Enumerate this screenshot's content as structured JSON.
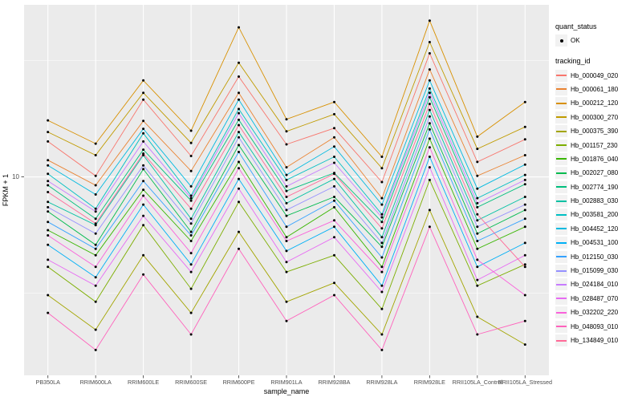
{
  "axes": {
    "y_title": "FPKM + 1",
    "x_title": "sample_name",
    "y_tick_label": "10"
  },
  "legend": {
    "quant_status_title": "quant_status",
    "quant_status_items": [
      {
        "label": "OK",
        "shape": "point"
      }
    ],
    "tracking_title": "tracking_id"
  },
  "panel": {
    "bg": "#EBEBEB",
    "grid": "#FFFFFF"
  },
  "chart_data": {
    "type": "line",
    "title": "",
    "xlabel": "sample_name",
    "ylabel": "FPKM + 1",
    "y_scale": "log10",
    "ylim": [
      1.4,
      55
    ],
    "y_major_ticks": [
      10
    ],
    "y_minor_ticks": [
      3.162,
      31.62
    ],
    "grid": true,
    "legend_position": "right",
    "point_color": "#000000",
    "categories": [
      "PB350LA",
      "RRIM600LA",
      "RRIM600LE",
      "RRIM600SE",
      "RRIM600PE",
      "RRIM901LA",
      "RRIM928BA",
      "RRIM928LA",
      "RRIM928LE",
      "RRII105LA_Control",
      "RRII105LA_Stressed"
    ],
    "series": [
      {
        "name": "Hb_000049_020",
        "color": "#F8766D",
        "values": [
          14.2,
          10.1,
          21.5,
          12.3,
          27,
          13.8,
          16.2,
          9.5,
          34,
          11.6,
          14.5
        ]
      },
      {
        "name": "Hb_000061_180",
        "color": "#EA8331",
        "values": [
          11.8,
          9.2,
          17.4,
          10.6,
          23,
          11,
          14.8,
          8.1,
          29,
          10.1,
          12.4
        ]
      },
      {
        "name": "Hb_000212_120",
        "color": "#D89000",
        "values": [
          17.5,
          13.9,
          26,
          15.8,
          44,
          17.7,
          21,
          12.2,
          47,
          14.9,
          21
        ]
      },
      {
        "name": "Hb_000300_270",
        "color": "#C09B00",
        "values": [
          15.6,
          12.4,
          23,
          14,
          31,
          15.7,
          18.6,
          10.9,
          38,
          13.2,
          16.4
        ]
      },
      {
        "name": "Hb_000375_390",
        "color": "#A3A500",
        "values": [
          3.1,
          2.2,
          4.6,
          2.6,
          5.8,
          2.9,
          3.5,
          2.1,
          7.2,
          2.5,
          1.9
        ]
      },
      {
        "name": "Hb_001157_230",
        "color": "#7CAE00",
        "values": [
          4.1,
          2.9,
          6.2,
          3.3,
          7.8,
          3.9,
          4.6,
          2.7,
          9.7,
          3.4,
          4.2
        ]
      },
      {
        "name": "Hb_001876_040",
        "color": "#39B600",
        "values": [
          5.9,
          4.6,
          8.8,
          5.3,
          11.6,
          5.5,
          7.4,
          4.1,
          14.6,
          4.9,
          6.1
        ]
      },
      {
        "name": "Hb_002027_080",
        "color": "#00BB4E",
        "values": [
          7.1,
          5.1,
          10.8,
          5.8,
          13.7,
          6.8,
          8.2,
          5,
          17,
          5.7,
          7.2
        ]
      },
      {
        "name": "Hb_002774_190",
        "color": "#00BF7D",
        "values": [
          9.2,
          6.6,
          13.1,
          7.9,
          17.6,
          8.7,
          10.4,
          6.4,
          22,
          7.4,
          9.3
        ]
      },
      {
        "name": "Hb_002883_030",
        "color": "#00C1A3",
        "values": [
          7.8,
          6.2,
          12.4,
          6.6,
          15.6,
          7.7,
          9.8,
          5.5,
          19.4,
          6.5,
          8.2
        ]
      },
      {
        "name": "Hb_003581_200",
        "color": "#00BFC4",
        "values": [
          10.3,
          7.3,
          15.4,
          8.3,
          19.6,
          9.7,
          12.2,
          6.9,
          24,
          8.1,
          10.2
        ]
      },
      {
        "name": "Hb_004452_120",
        "color": "#00BAE0",
        "values": [
          11.2,
          8.4,
          16.1,
          9.1,
          21.5,
          10.2,
          13.5,
          7.6,
          26,
          8.9,
          11.3
        ]
      },
      {
        "name": "Hb_004531_100",
        "color": "#00B0F6",
        "values": [
          5.1,
          3.7,
          7.6,
          4.2,
          9.8,
          4.8,
          6.1,
          3.4,
          12.2,
          4.1,
          5.2
        ]
      },
      {
        "name": "Hb_012150_030",
        "color": "#35A2FF",
        "values": [
          6.4,
          4.9,
          9.6,
          5.6,
          12.8,
          6.1,
          7.9,
          4.5,
          16,
          5.3,
          6.6
        ]
      },
      {
        "name": "Hb_015099_030",
        "color": "#9590FF",
        "values": [
          7.4,
          5.7,
          11.2,
          6.3,
          14.8,
          7.2,
          9.1,
          5.2,
          18.2,
          6.1,
          7.6
        ]
      },
      {
        "name": "Hb_024184_010",
        "color": "#C77CFF",
        "values": [
          9.6,
          7.1,
          14.2,
          8.1,
          18.8,
          9.1,
          11.5,
          6.7,
          23,
          7.7,
          9.7
        ]
      },
      {
        "name": "Hb_028487_070",
        "color": "#E76BF3",
        "values": [
          4.4,
          3.4,
          6.8,
          3.9,
          8.9,
          4.3,
          5.5,
          3.2,
          11,
          3.6,
          4.6
        ]
      },
      {
        "name": "Hb_032202_220",
        "color": "#FA62DB",
        "values": [
          5.6,
          4.1,
          8.3,
          4.7,
          10.9,
          5.3,
          6.5,
          3.9,
          13.4,
          4.4,
          3.1
        ]
      },
      {
        "name": "Hb_048093_010",
        "color": "#FF62BC",
        "values": [
          2.6,
          1.8,
          3.8,
          2.1,
          4.9,
          2.4,
          3.1,
          1.8,
          6.1,
          2.1,
          2.4
        ]
      },
      {
        "name": "Hb_134849_010",
        "color": "#FF6A98",
        "values": [
          8.6,
          6.3,
          12.6,
          7.3,
          16.7,
          8.2,
          10.3,
          6,
          20.6,
          6.9,
          4.1
        ]
      }
    ]
  }
}
